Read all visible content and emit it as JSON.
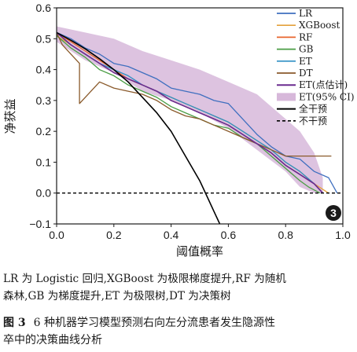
{
  "chart_data": {
    "type": "line",
    "xlabel": "阈值概率",
    "ylabel": "净获益",
    "xlim": [
      0.0,
      1.0
    ],
    "ylim": [
      -0.1,
      0.6
    ],
    "xticks": [
      "0.0",
      "0.2",
      "0.4",
      "0.6",
      "0.8",
      "1.0"
    ],
    "yticks": [
      "−0.1",
      "0.0",
      "0.1",
      "0.2",
      "0.3",
      "0.4",
      "0.5",
      "0.6"
    ],
    "panel_label": "3",
    "legend_position": "top-right",
    "band": {
      "name": "ET(95% CI)",
      "color": "#d7b8da",
      "x": [
        0.0,
        0.1,
        0.2,
        0.3,
        0.4,
        0.5,
        0.6,
        0.7,
        0.8,
        0.85,
        0.9,
        0.93
      ],
      "upper": [
        0.54,
        0.52,
        0.5,
        0.46,
        0.43,
        0.4,
        0.36,
        0.32,
        0.24,
        0.2,
        0.13,
        0.05
      ],
      "lower": [
        0.49,
        0.43,
        0.39,
        0.33,
        0.3,
        0.26,
        0.21,
        0.14,
        0.07,
        0.02,
        0.0,
        0.0
      ]
    },
    "series": [
      {
        "name": "LR",
        "color": "#3f6fbf",
        "dash": "",
        "width": 1.3,
        "x": [
          0.0,
          0.05,
          0.1,
          0.15,
          0.2,
          0.25,
          0.3,
          0.35,
          0.4,
          0.45,
          0.5,
          0.55,
          0.6,
          0.65,
          0.7,
          0.75,
          0.8,
          0.85,
          0.9,
          0.95,
          0.98
        ],
        "y": [
          0.52,
          0.5,
          0.47,
          0.45,
          0.42,
          0.41,
          0.39,
          0.37,
          0.34,
          0.33,
          0.32,
          0.3,
          0.29,
          0.24,
          0.19,
          0.15,
          0.12,
          0.11,
          0.07,
          0.05,
          0.0
        ]
      },
      {
        "name": "XGBoost",
        "color": "#e3a13b",
        "dash": "",
        "width": 1.3,
        "x": [
          0.0,
          0.05,
          0.1,
          0.15,
          0.2,
          0.25,
          0.3,
          0.35,
          0.4,
          0.45,
          0.5,
          0.55,
          0.6,
          0.65,
          0.7,
          0.75,
          0.8,
          0.85,
          0.9,
          0.95
        ],
        "y": [
          0.51,
          0.48,
          0.45,
          0.42,
          0.39,
          0.37,
          0.35,
          0.33,
          0.31,
          0.29,
          0.27,
          0.25,
          0.23,
          0.2,
          0.17,
          0.14,
          0.1,
          0.07,
          0.03,
          0.0
        ]
      },
      {
        "name": "RF",
        "color": "#e8652d",
        "dash": "",
        "width": 1.3,
        "x": [
          0.0,
          0.05,
          0.1,
          0.15,
          0.2,
          0.25,
          0.3,
          0.35,
          0.4,
          0.45,
          0.5,
          0.55,
          0.6,
          0.65,
          0.7,
          0.75,
          0.8,
          0.85,
          0.9,
          0.93
        ],
        "y": [
          0.52,
          0.49,
          0.46,
          0.43,
          0.4,
          0.37,
          0.35,
          0.33,
          0.3,
          0.28,
          0.26,
          0.24,
          0.22,
          0.19,
          0.16,
          0.13,
          0.09,
          0.06,
          0.03,
          0.0
        ]
      },
      {
        "name": "GB",
        "color": "#4a9d44",
        "dash": "",
        "width": 1.3,
        "x": [
          0.0,
          0.05,
          0.1,
          0.15,
          0.2,
          0.25,
          0.3,
          0.35,
          0.4,
          0.45,
          0.5,
          0.55,
          0.6,
          0.65,
          0.7,
          0.75,
          0.8,
          0.85,
          0.88,
          0.92
        ],
        "y": [
          0.51,
          0.47,
          0.44,
          0.4,
          0.38,
          0.35,
          0.33,
          0.31,
          0.28,
          0.26,
          0.24,
          0.22,
          0.21,
          0.18,
          0.16,
          0.12,
          0.08,
          0.04,
          0.02,
          0.0
        ]
      },
      {
        "name": "ET",
        "color": "#2f8fc4",
        "dash": "",
        "width": 1.3,
        "x": [
          0.0,
          0.05,
          0.1,
          0.15,
          0.2,
          0.25,
          0.3,
          0.35,
          0.4,
          0.45,
          0.5,
          0.55,
          0.6,
          0.65,
          0.7,
          0.75,
          0.8,
          0.85,
          0.9,
          0.93
        ],
        "y": [
          0.52,
          0.48,
          0.45,
          0.42,
          0.4,
          0.38,
          0.35,
          0.33,
          0.31,
          0.29,
          0.27,
          0.25,
          0.23,
          0.2,
          0.17,
          0.14,
          0.1,
          0.07,
          0.03,
          0.0
        ]
      },
      {
        "name": "DT",
        "color": "#8a5a2b",
        "dash": "",
        "width": 1.3,
        "x": [
          0.0,
          0.02,
          0.05,
          0.08,
          0.08,
          0.15,
          0.2,
          0.25,
          0.3,
          0.35,
          0.4,
          0.45,
          0.5,
          0.55,
          0.6,
          0.65,
          0.7,
          0.75,
          0.8,
          0.85,
          0.88,
          0.9,
          0.96
        ],
        "y": [
          0.52,
          0.48,
          0.45,
          0.42,
          0.29,
          0.36,
          0.34,
          0.33,
          0.32,
          0.3,
          0.27,
          0.25,
          0.24,
          0.22,
          0.2,
          0.18,
          0.16,
          0.14,
          0.12,
          0.12,
          0.12,
          0.12,
          0.12
        ]
      },
      {
        "name": "ET(点估计)",
        "color": "#6a2c8f",
        "dash": "",
        "width": 1.6,
        "x": [
          0.0,
          0.05,
          0.1,
          0.15,
          0.2,
          0.25,
          0.3,
          0.35,
          0.4,
          0.45,
          0.5,
          0.55,
          0.6,
          0.65,
          0.7,
          0.75,
          0.8,
          0.85,
          0.9,
          0.93
        ],
        "y": [
          0.52,
          0.48,
          0.45,
          0.42,
          0.39,
          0.37,
          0.35,
          0.33,
          0.3,
          0.28,
          0.26,
          0.24,
          0.22,
          0.19,
          0.16,
          0.13,
          0.09,
          0.06,
          0.03,
          0.0
        ]
      },
      {
        "name": "全干预",
        "color": "#000000",
        "dash": "",
        "width": 1.6,
        "x": [
          0.0,
          0.05,
          0.1,
          0.15,
          0.2,
          0.25,
          0.3,
          0.35,
          0.4,
          0.45,
          0.5,
          0.52,
          0.55,
          0.57
        ],
        "y": [
          0.52,
          0.495,
          0.467,
          0.435,
          0.4,
          0.36,
          0.31,
          0.26,
          0.2,
          0.12,
          0.04,
          0.0,
          -0.06,
          -0.1
        ]
      },
      {
        "name": "不干预",
        "color": "#000000",
        "dash": "4,3",
        "width": 1.3,
        "x": [
          0.0,
          1.0
        ],
        "y": [
          0.0,
          0.0
        ]
      }
    ]
  },
  "caption": {
    "line1": "LR 为 Logistic 回归,XGBoost 为极限梯度提升,RF 为随机",
    "line2": "森林,GB 为梯度提升,ET 为极限树,DT 为决策树",
    "figure_label": "图 3",
    "figure_title_line1": "6 种机器学习模型预测右向左分流患者发生隐源性",
    "figure_title_line2": "卒中的决策曲线分析"
  }
}
